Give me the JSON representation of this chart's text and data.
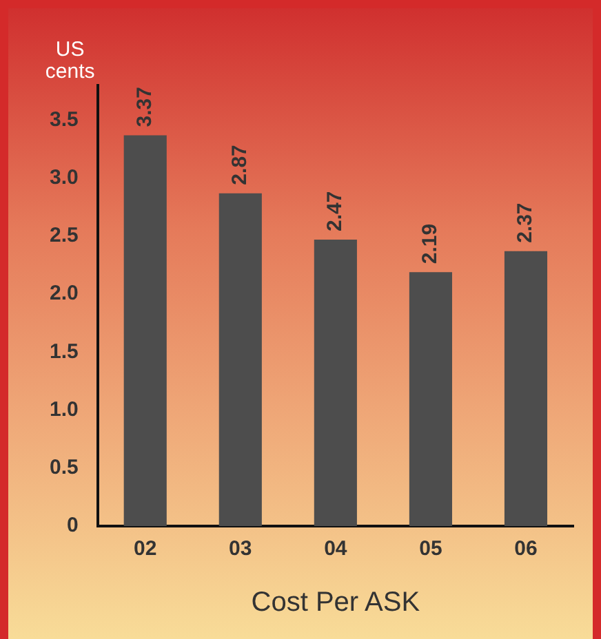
{
  "chart_data": {
    "type": "bar",
    "xlabel": "Cost Per ASK",
    "ylabel": "US\ncents",
    "categories": [
      "02",
      "03",
      "04",
      "05",
      "06"
    ],
    "values": [
      3.37,
      2.87,
      2.47,
      2.19,
      2.37
    ],
    "color": "#4d4d4d",
    "ylim": [
      0,
      3.8
    ],
    "yticks": [
      0,
      0.5,
      {
        "value": 1,
        "label": "1.0"
      },
      1.5,
      {
        "value": 2,
        "label": "2.0"
      },
      2.5,
      {
        "value": 3,
        "label": "3.0"
      },
      3.5
    ],
    "grid": false,
    "legend": false,
    "data_labels": true
  }
}
